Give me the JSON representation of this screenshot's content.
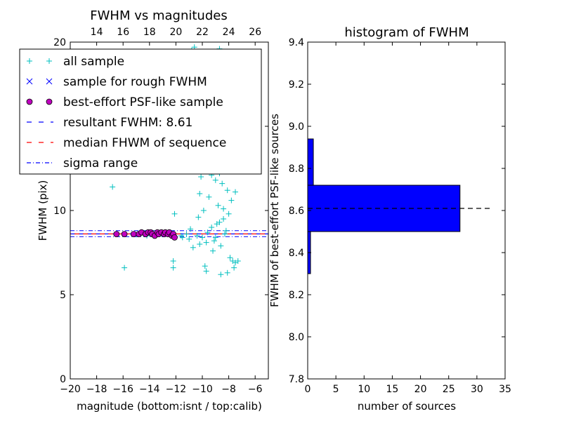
{
  "chart_data": [
    {
      "type": "scatter",
      "title": "FWHM vs magnitudes",
      "xlabel": "magnitude (bottom:isnt / top:calib)",
      "ylabel": "FWHM (pix)",
      "xlim": [
        -20,
        -5
      ],
      "ylim": [
        0,
        20
      ],
      "x_ticks": [
        -20,
        -18,
        -16,
        -14,
        -12,
        -10,
        -8,
        -6
      ],
      "x_tick_labels": [
        "−20",
        "−18",
        "−16",
        "−14",
        "−12",
        "−10",
        "−8",
        "−6"
      ],
      "y_ticks": [
        0,
        5,
        10,
        15,
        20
      ],
      "y_tick_labels": [
        "0",
        "5",
        "10",
        "15",
        "20"
      ],
      "top_axis": {
        "offset": 32,
        "ticks": [
          14,
          16,
          18,
          20,
          22,
          24,
          26
        ],
        "tick_labels": [
          "14",
          "16",
          "18",
          "20",
          "22",
          "24",
          "26"
        ]
      },
      "legend": {
        "placement": "upper-left",
        "entries": [
          {
            "label": "all sample",
            "marker": "plus",
            "color": "#00bfbf"
          },
          {
            "label": "sample for rough FWHM",
            "marker": "x",
            "color": "#0000ff"
          },
          {
            "label": "best-effort PSF-like sample",
            "marker": "circle",
            "color": "#bf00bf"
          },
          {
            "label": "resultant FWHM: 8.61",
            "marker": "dashed",
            "color": "#0000ff"
          },
          {
            "label": "median FHWM of sequence",
            "marker": "dashed",
            "color": "#ff0000"
          },
          {
            "label": "sigma range",
            "marker": "dashdot",
            "color": "#0000ff"
          }
        ]
      },
      "lines": {
        "resultant_fwhm": 8.61,
        "median_fwhm": 8.61,
        "sigma_range": [
          8.45,
          8.8
        ]
      },
      "series": [
        {
          "name": "all sample",
          "marker": "plus",
          "color": "#00bfbf",
          "points": [
            [
              -16.8,
              11.4
            ],
            [
              -15.9,
              6.6
            ],
            [
              -12.2,
              7.0
            ],
            [
              -12.2,
              6.6
            ],
            [
              -12.1,
              9.8
            ],
            [
              -11.5,
              8.4
            ],
            [
              -11.2,
              8.6
            ],
            [
              -11.0,
              8.3
            ],
            [
              -10.9,
              8.9
            ],
            [
              -10.7,
              7.8
            ],
            [
              -10.5,
              13.3
            ],
            [
              -10.4,
              8.5
            ],
            [
              -10.3,
              9.6
            ],
            [
              -10.2,
              11.0
            ],
            [
              -10.1,
              12.0
            ],
            [
              -10.0,
              8.4
            ],
            [
              -9.9,
              10.0
            ],
            [
              -9.8,
              6.7
            ],
            [
              -9.7,
              6.4
            ],
            [
              -9.6,
              8.7
            ],
            [
              -9.5,
              10.8
            ],
            [
              -9.4,
              12.6
            ],
            [
              -9.3,
              9.0
            ],
            [
              -9.2,
              7.6
            ],
            [
              -9.1,
              8.2
            ],
            [
              -9.0,
              11.8
            ],
            [
              -8.9,
              13.9
            ],
            [
              -8.8,
              10.3
            ],
            [
              -8.7,
              9.3
            ],
            [
              -8.7,
              12.2
            ],
            [
              -8.6,
              7.9
            ],
            [
              -8.5,
              11.6
            ],
            [
              -8.5,
              14.8
            ],
            [
              -8.4,
              10.1
            ],
            [
              -8.3,
              12.9
            ],
            [
              -8.3,
              8.6
            ],
            [
              -8.2,
              15.9
            ],
            [
              -8.1,
              11.2
            ],
            [
              -8.0,
              9.8
            ],
            [
              -8.0,
              13.6
            ],
            [
              -7.9,
              7.2
            ],
            [
              -7.8,
              10.6
            ],
            [
              -7.7,
              7.0
            ],
            [
              -7.6,
              6.6
            ],
            [
              -7.5,
              6.9
            ],
            [
              -8.6,
              6.2
            ],
            [
              -8.1,
              6.3
            ],
            [
              -7.3,
              7.0
            ],
            [
              -7.5,
              11.1
            ],
            [
              -8.4,
              9.5
            ],
            [
              -8.9,
              9.2
            ],
            [
              -9.3,
              12.1
            ],
            [
              -10.6,
              12.7
            ],
            [
              -11.0,
              13.2
            ],
            [
              -10.8,
              19.5
            ],
            [
              -10.6,
              19.7
            ],
            [
              -8.7,
              19.6
            ],
            [
              -9.7,
              8.1
            ],
            [
              -10.2,
              8.0
            ],
            [
              -11.6,
              8.5
            ],
            [
              -12.4,
              8.7
            ],
            [
              -13.3,
              8.6
            ],
            [
              -14.2,
              8.5
            ],
            [
              -8.2,
              8.8
            ],
            [
              -9.0,
              8.4
            ]
          ]
        },
        {
          "name": "best-effort PSF-like sample",
          "marker": "circle",
          "color": "#bf00bf",
          "points": [
            [
              -16.5,
              8.6
            ],
            [
              -15.9,
              8.6
            ],
            [
              -15.2,
              8.6
            ],
            [
              -14.8,
              8.6
            ],
            [
              -14.6,
              8.7
            ],
            [
              -14.3,
              8.6
            ],
            [
              -14.1,
              8.7
            ],
            [
              -13.9,
              8.7
            ],
            [
              -13.8,
              8.6
            ],
            [
              -13.6,
              8.5
            ],
            [
              -13.4,
              8.7
            ],
            [
              -13.3,
              8.6
            ],
            [
              -13.1,
              8.7
            ],
            [
              -12.9,
              8.6
            ],
            [
              -12.8,
              8.7
            ],
            [
              -12.6,
              8.6
            ],
            [
              -12.5,
              8.7
            ],
            [
              -12.3,
              8.5
            ],
            [
              -12.2,
              8.6
            ],
            [
              -12.1,
              8.4
            ]
          ]
        }
      ]
    },
    {
      "type": "bar",
      "orientation": "horizontal",
      "title": "histogram of FWHM",
      "xlabel": "number of sources",
      "ylabel": "FWHM of best-effort PSF-like sources",
      "xlim": [
        0,
        35
      ],
      "ylim": [
        7.8,
        9.4
      ],
      "x_ticks": [
        0,
        5,
        10,
        15,
        20,
        25,
        30,
        35
      ],
      "x_tick_labels": [
        "0",
        "5",
        "10",
        "15",
        "20",
        "25",
        "30",
        "35"
      ],
      "y_ticks": [
        7.8,
        8.0,
        8.2,
        8.4,
        8.6,
        8.8,
        9.0,
        9.2,
        9.4
      ],
      "y_tick_labels": [
        "7.8",
        "8.0",
        "8.2",
        "8.4",
        "8.6",
        "8.8",
        "9.0",
        "9.2",
        "9.4"
      ],
      "bar_color": "#0000ff",
      "bins": [
        {
          "y0": 8.3,
          "y1": 8.5,
          "count": 0.5
        },
        {
          "y0": 8.5,
          "y1": 8.72,
          "count": 27
        },
        {
          "y0": 8.72,
          "y1": 8.94,
          "count": 1
        }
      ],
      "median_line": 8.61
    }
  ]
}
